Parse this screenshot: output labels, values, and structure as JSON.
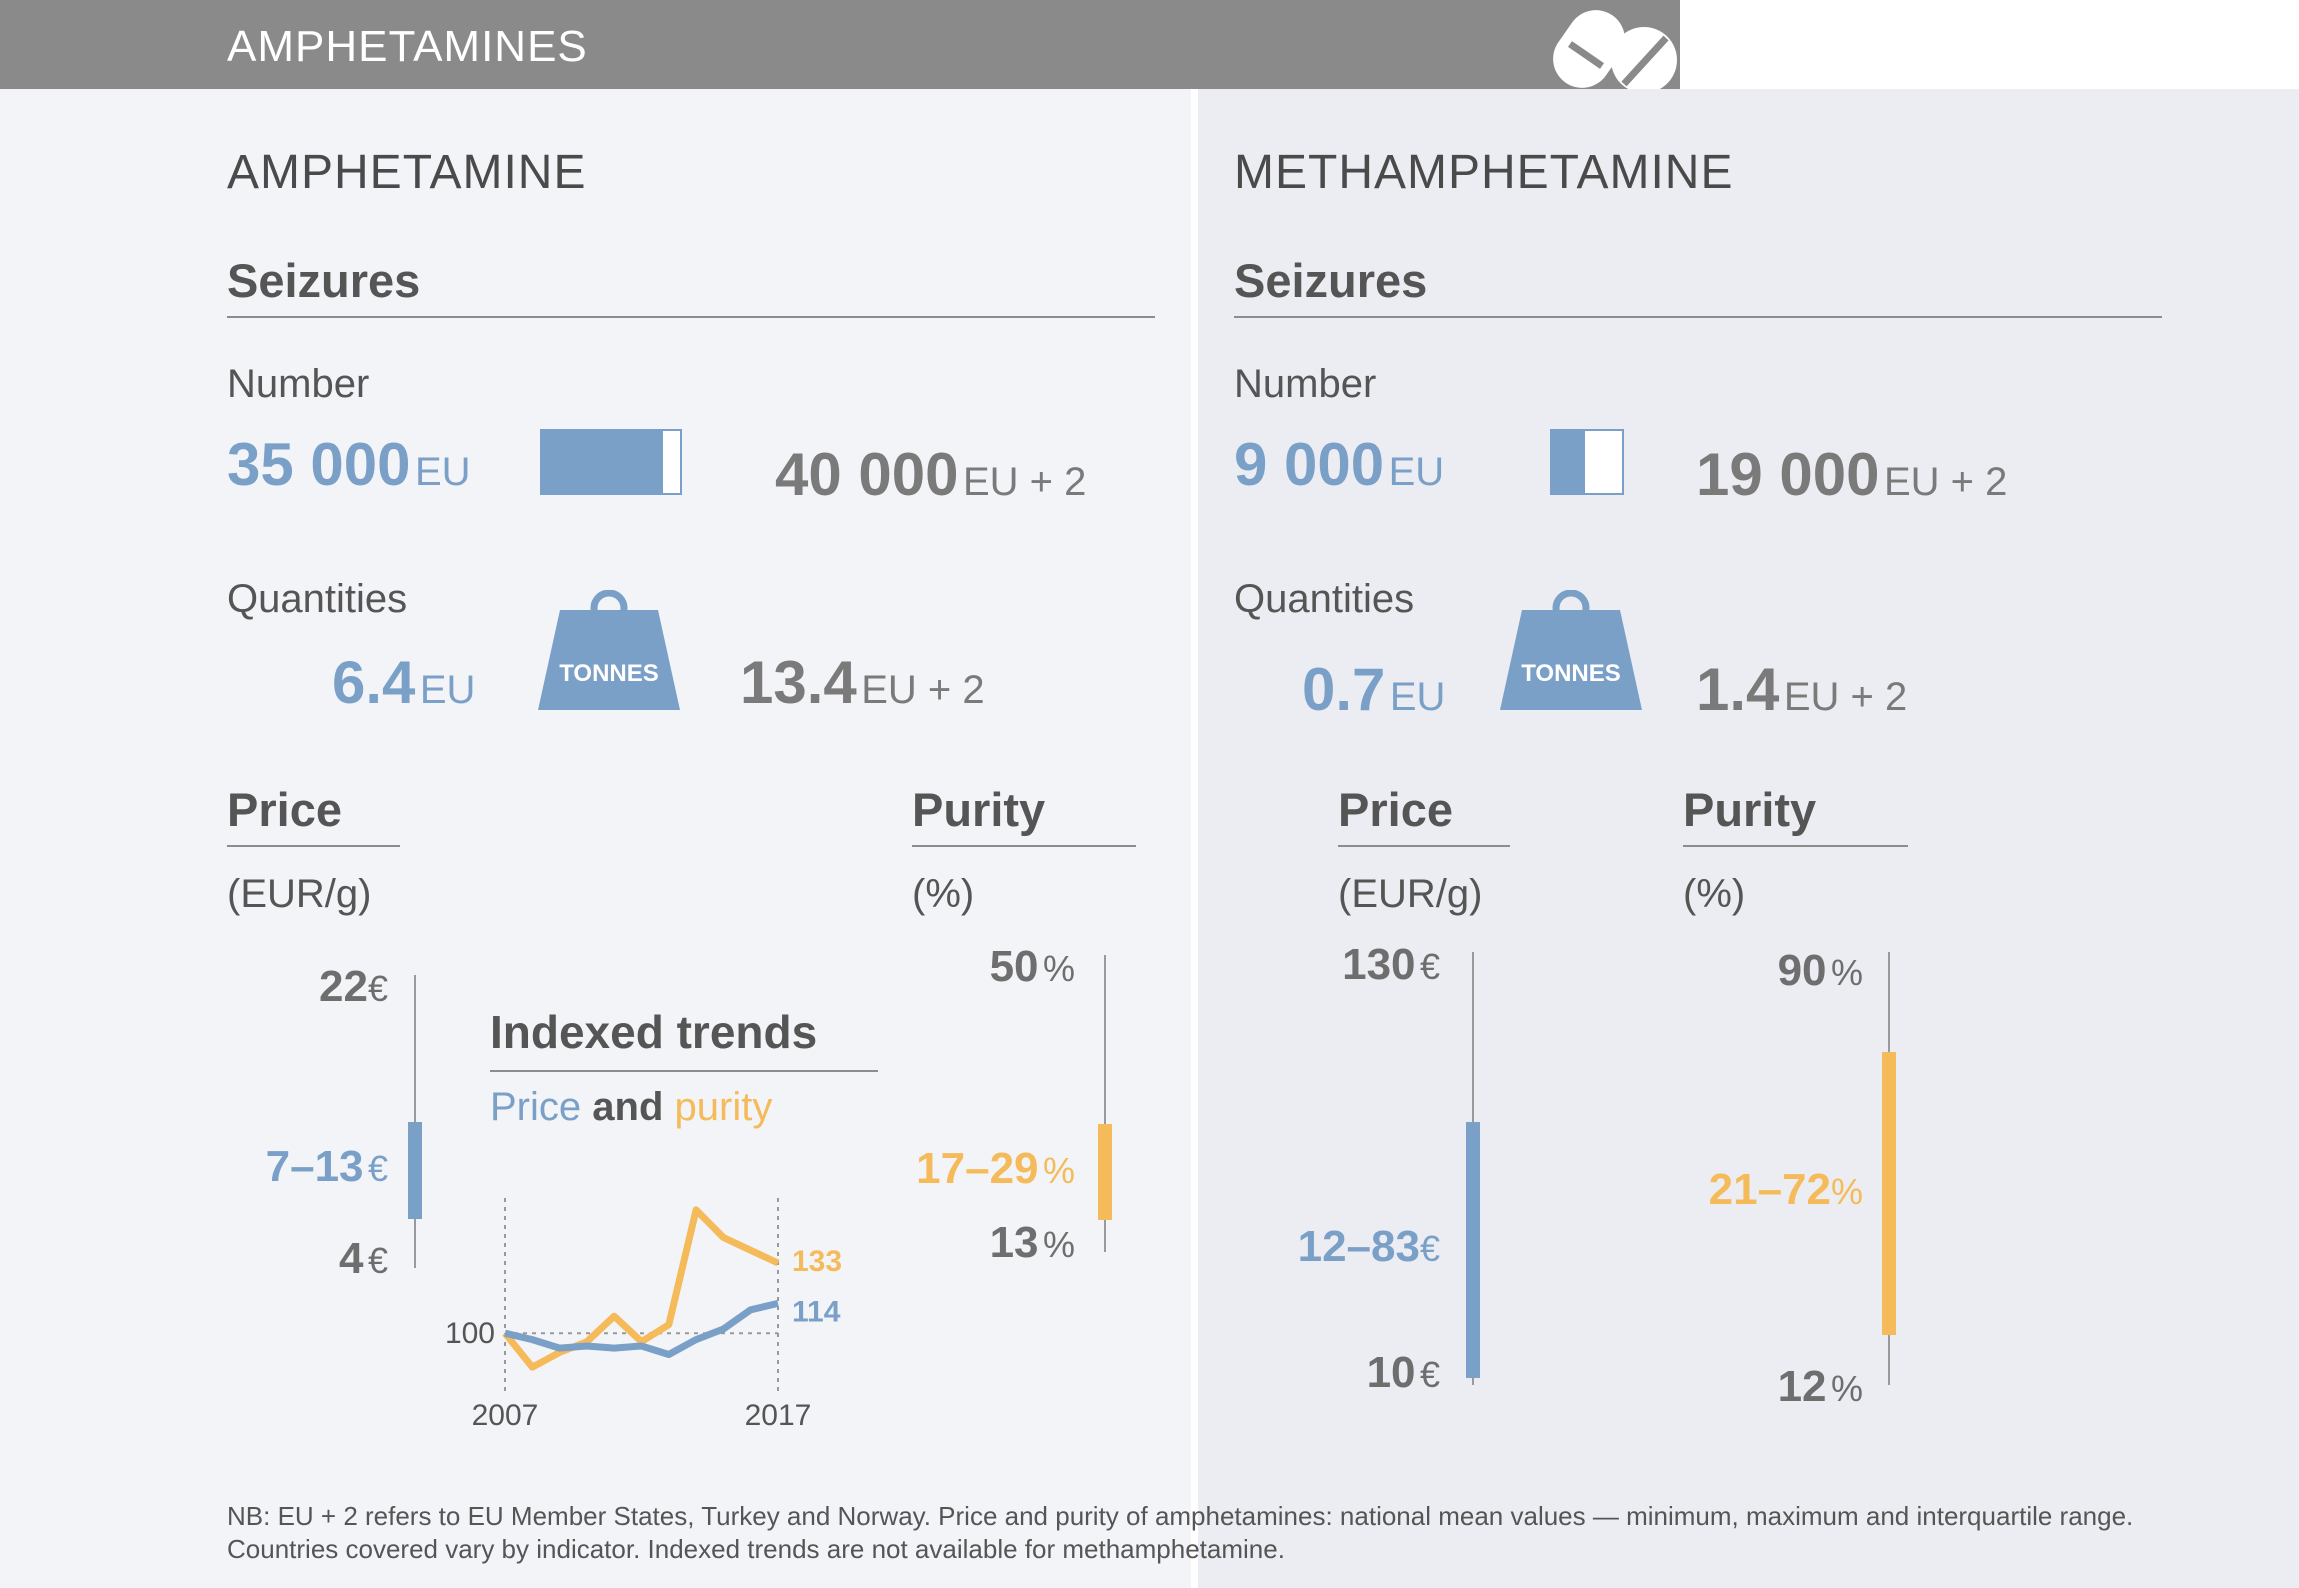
{
  "header": {
    "title": "AMPHETAMINES",
    "icon": "pills-icon"
  },
  "amphetamine": {
    "title": "AMPHETAMINE",
    "seizures_title": "Seizures",
    "number_label": "Number",
    "number_eu": "35 000",
    "number_eu_unit": "EU",
    "number_eu2": "40 000",
    "number_eu2_unit": "EU + 2",
    "number_share": 0.875,
    "quantities_label": "Quantities",
    "qty_eu": "6.4",
    "qty_eu_unit": "EU",
    "qty_eu2": "13.4",
    "qty_eu2_unit": "EU + 2",
    "weight_label": "TONNES",
    "price_title": "Price",
    "price_unit": "(EUR/g)",
    "price_max": "22",
    "price_max_unit": "€",
    "price_range": "7–13",
    "price_range_unit": "€",
    "price_min": "4",
    "price_min_unit": "€",
    "purity_title": "Purity",
    "purity_unit": "(%)",
    "purity_max": "50",
    "purity_max_unit": "%",
    "purity_range": "17–29",
    "purity_range_unit": "%",
    "purity_min": "13",
    "purity_min_unit": "%"
  },
  "methamphetamine": {
    "title": "METHAMPHETAMINE",
    "seizures_title": "Seizures",
    "number_label": "Number",
    "number_eu": "9 000",
    "number_eu_unit": "EU",
    "number_eu2": "19 000",
    "number_eu2_unit": "EU + 2",
    "number_share": 0.47,
    "quantities_label": "Quantities",
    "qty_eu": "0.7",
    "qty_eu_unit": "EU",
    "qty_eu2": "1.4",
    "qty_eu2_unit": "EU + 2",
    "weight_label": "TONNES",
    "price_title": "Price",
    "price_unit": "(EUR/g)",
    "price_max": "130",
    "price_max_unit": "€",
    "price_range": "12–83",
    "price_range_unit": "€",
    "price_min": "10",
    "price_min_unit": "€",
    "purity_title": "Purity",
    "purity_unit": "(%)",
    "purity_max": "90",
    "purity_max_unit": "%",
    "purity_range": "21–72",
    "purity_range_unit": "%",
    "purity_min": "12",
    "purity_min_unit": "%"
  },
  "trends": {
    "title": "Indexed trends",
    "subtitle_price": "Price",
    "subtitle_and": "and",
    "subtitle_purity": "purity",
    "baseline_label": "100",
    "start_label": "2007",
    "end_label": "2017",
    "price_end_label": "114",
    "purity_end_label": "133"
  },
  "note": {
    "line1": "NB: EU + 2 refers to EU Member States, Turkey and Norway. Price and purity of amphetamines: national mean values — minimum, maximum and interquartile range.",
    "line2": "Countries covered vary by indicator. Indexed trends are not available for methamphetamine."
  },
  "colors": {
    "blue": "#7aa0c8",
    "orange": "#f5bb5a",
    "grey": "#8a8a8a"
  },
  "chart_data": [
    {
      "type": "line",
      "title": "Indexed trends",
      "x": [
        2007,
        2008,
        2009,
        2010,
        2011,
        2012,
        2013,
        2014,
        2015,
        2016,
        2017
      ],
      "series": [
        {
          "name": "Price",
          "color": "#7aa0c8",
          "values": [
            100,
            97,
            93,
            94,
            93,
            94,
            90,
            97,
            102,
            111,
            114
          ]
        },
        {
          "name": "purity",
          "color": "#f5bb5a",
          "values": [
            100,
            84,
            91,
            96,
            108,
            96,
            104,
            158,
            145,
            139,
            133
          ]
        }
      ],
      "baseline": 100,
      "ylim": [
        78,
        165
      ],
      "xlim": [
        2007,
        2017
      ]
    },
    {
      "type": "bar",
      "title": "Amphetamine price (EUR/g)",
      "min": 4,
      "max": 22,
      "iqr": [
        7,
        13
      ]
    },
    {
      "type": "bar",
      "title": "Amphetamine purity (%)",
      "min": 13,
      "max": 50,
      "iqr": [
        17,
        29
      ]
    },
    {
      "type": "bar",
      "title": "Methamphetamine price (EUR/g)",
      "min": 10,
      "max": 130,
      "iqr": [
        12,
        83
      ]
    },
    {
      "type": "bar",
      "title": "Methamphetamine purity (%)",
      "min": 12,
      "max": 90,
      "iqr": [
        21,
        72
      ]
    }
  ]
}
